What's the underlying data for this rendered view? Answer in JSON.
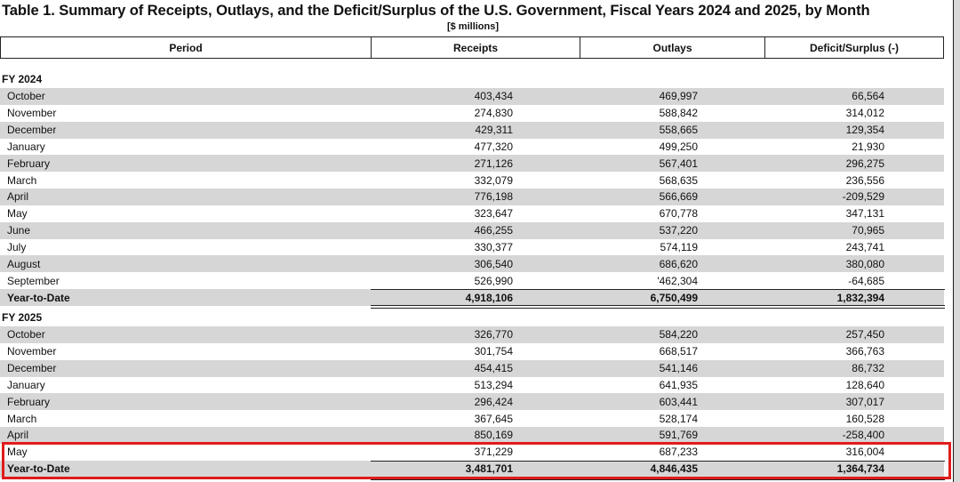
{
  "title": "Table 1. Summary of Receipts, Outlays, and the Deficit/Surplus of the U.S. Government, Fiscal Years 2024 and 2025, by Month",
  "subtitle": "[$ millions]",
  "columns": [
    "Period",
    "Receipts",
    "Outlays",
    "Deficit/Surplus (-)"
  ],
  "fy2024": {
    "label": "FY 2024",
    "rows": [
      [
        "October",
        "403,434",
        "469,997",
        "66,564"
      ],
      [
        "November",
        "274,830",
        "588,842",
        "314,012"
      ],
      [
        "December",
        "429,311",
        "558,665",
        "129,354"
      ],
      [
        "January",
        "477,320",
        "499,250",
        "21,930"
      ],
      [
        "February",
        "271,126",
        "567,401",
        "296,275"
      ],
      [
        "March",
        "332,079",
        "568,635",
        "236,556"
      ],
      [
        "April",
        "776,198",
        "566,669",
        "-209,529"
      ],
      [
        "May",
        "323,647",
        "670,778",
        "347,131"
      ],
      [
        "June",
        "466,255",
        "537,220",
        "70,965"
      ],
      [
        "July",
        "330,377",
        "574,119",
        "243,741"
      ],
      [
        "August",
        "306,540",
        "686,620",
        "380,080"
      ],
      [
        "September",
        "526,990",
        "'462,304",
        "-64,685"
      ]
    ],
    "ytd": [
      "Year-to-Date",
      "4,918,106",
      "6,750,499",
      "1,832,394"
    ]
  },
  "fy2025": {
    "label": "FY 2025",
    "rows": [
      [
        "October",
        "326,770",
        "584,220",
        "257,450"
      ],
      [
        "November",
        "301,754",
        "668,517",
        "366,763"
      ],
      [
        "December",
        "454,415",
        "541,146",
        "86,732"
      ],
      [
        "January",
        "513,294",
        "641,935",
        "128,640"
      ],
      [
        "February",
        "296,424",
        "603,441",
        "307,017"
      ],
      [
        "March",
        "367,645",
        "528,174",
        "160,528"
      ],
      [
        "April",
        "850,169",
        "591,769",
        "-258,400"
      ],
      [
        "May",
        "371,229",
        "687,233",
        "316,004"
      ]
    ],
    "ytd": [
      "Year-to-Date",
      "3,481,701",
      "4,846,435",
      "1,364,734"
    ]
  },
  "highlight_color": "#e01c1c"
}
